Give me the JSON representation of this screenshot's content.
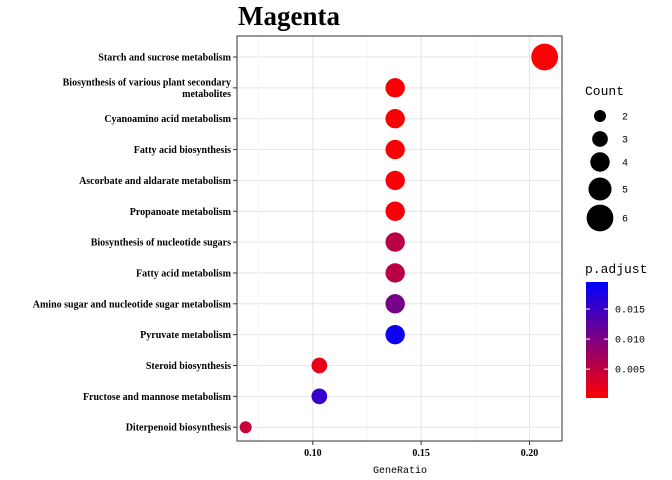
{
  "chart_data": {
    "type": "scatter",
    "title": "Magenta",
    "xlabel": "GeneRatio",
    "ylabel": "",
    "xlim": [
      0.065,
      0.215
    ],
    "xticks": [
      0.1,
      0.15,
      0.2
    ],
    "xtick_labels": [
      "0.10",
      "0.15",
      "0.20"
    ],
    "categories": [
      "Starch and sucrose metabolism",
      "Biosynthesis of various plant secondary metabolites",
      "Cyanoamino acid metabolism",
      "Fatty acid biosynthesis",
      "Ascorbate and aldarate metabolism",
      "Propanoate metabolism",
      "Biosynthesis of nucleotide sugars",
      "Fatty acid metabolism",
      "Amino sugar and nucleotide sugar metabolism",
      "Pyruvate metabolism",
      "Steroid biosynthesis",
      "Fructose and mannose metabolism",
      "Diterpenoid biosynthesis"
    ],
    "category_lines": [
      [
        "Starch and sucrose metabolism"
      ],
      [
        "Biosynthesis of various plant secondary",
        "metabolites"
      ],
      [
        "Cyanoamino acid metabolism"
      ],
      [
        "Fatty acid biosynthesis"
      ],
      [
        "Ascorbate and aldarate metabolism"
      ],
      [
        "Propanoate metabolism"
      ],
      [
        "Biosynthesis of nucleotide sugars"
      ],
      [
        "Fatty acid metabolism"
      ],
      [
        "Amino sugar and nucleotide sugar metabolism"
      ],
      [
        "Pyruvate metabolism"
      ],
      [
        "Steroid biosynthesis"
      ],
      [
        "Fructose and mannose metabolism"
      ],
      [
        "Diterpenoid biosynthesis"
      ]
    ],
    "points": [
      {
        "term": "Starch and sucrose metabolism",
        "gene_ratio": 0.207,
        "count": 6,
        "p_adjust": 0.0005
      },
      {
        "term": "Biosynthesis of various plant secondary metabolites",
        "gene_ratio": 0.138,
        "count": 4,
        "p_adjust": 0.0006
      },
      {
        "term": "Cyanoamino acid metabolism",
        "gene_ratio": 0.138,
        "count": 4,
        "p_adjust": 0.0006
      },
      {
        "term": "Fatty acid biosynthesis",
        "gene_ratio": 0.138,
        "count": 4,
        "p_adjust": 0.0006
      },
      {
        "term": "Ascorbate and aldarate metabolism",
        "gene_ratio": 0.138,
        "count": 4,
        "p_adjust": 0.0006
      },
      {
        "term": "Propanoate metabolism",
        "gene_ratio": 0.138,
        "count": 4,
        "p_adjust": 0.0008
      },
      {
        "term": "Biosynthesis of nucleotide sugars",
        "gene_ratio": 0.138,
        "count": 4,
        "p_adjust": 0.0055
      },
      {
        "term": "Fatty acid metabolism",
        "gene_ratio": 0.138,
        "count": 4,
        "p_adjust": 0.0055
      },
      {
        "term": "Amino sugar and nucleotide sugar metabolism",
        "gene_ratio": 0.138,
        "count": 4,
        "p_adjust": 0.0105
      },
      {
        "term": "Pyruvate metabolism",
        "gene_ratio": 0.138,
        "count": 4,
        "p_adjust": 0.0185
      },
      {
        "term": "Steroid biosynthesis",
        "gene_ratio": 0.103,
        "count": 3,
        "p_adjust": 0.002
      },
      {
        "term": "Fructose and mannose metabolism",
        "gene_ratio": 0.103,
        "count": 3,
        "p_adjust": 0.0155
      },
      {
        "term": "Diterpenoid biosynthesis",
        "gene_ratio": 0.069,
        "count": 2,
        "p_adjust": 0.0045
      }
    ],
    "size_legend": {
      "title": "Count",
      "values": [
        2,
        3,
        4,
        5,
        6
      ]
    },
    "color_legend": {
      "title": "p.adjust",
      "low_color": "#FF0000",
      "high_color": "#0000FF",
      "range": [
        0.0002,
        0.0195
      ],
      "ticks": [
        0.005,
        0.01,
        0.015
      ],
      "tick_labels": [
        "0.005",
        "0.010",
        "0.015"
      ]
    },
    "grid": true,
    "legend_position": "right"
  }
}
